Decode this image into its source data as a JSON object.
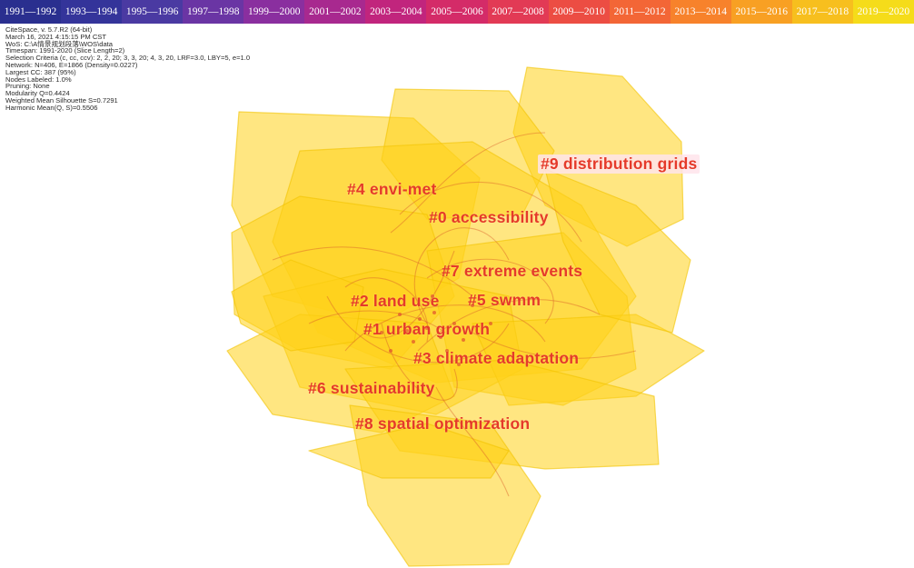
{
  "timeline": {
    "slices": [
      {
        "label": "1991—1992",
        "color": "#2a2f8f"
      },
      {
        "label": "1993—1994",
        "color": "#34349a"
      },
      {
        "label": "1995—1996",
        "color": "#4a3aa2"
      },
      {
        "label": "1997—1998",
        "color": "#6a35a4"
      },
      {
        "label": "1999—2000",
        "color": "#8a2f9f"
      },
      {
        "label": "2001—2002",
        "color": "#a8298f"
      },
      {
        "label": "2003—2004",
        "color": "#c1257d"
      },
      {
        "label": "2005—2006",
        "color": "#d42b68"
      },
      {
        "label": "2007—2008",
        "color": "#e23a55"
      },
      {
        "label": "2009—2010",
        "color": "#ec4d43"
      },
      {
        "label": "2011—2012",
        "color": "#f36636"
      },
      {
        "label": "2013—2014",
        "color": "#f7822b"
      },
      {
        "label": "2015—2016",
        "color": "#f8a023"
      },
      {
        "label": "2017—2018",
        "color": "#f7bf1e"
      },
      {
        "label": "2019—2020",
        "color": "#f5dc1a"
      }
    ]
  },
  "meta_lines": [
    "CiteSpace, v. 5.7.R2 (64-bit)",
    "March 16, 2021 4:15:15 PM CST",
    "WoS: C:\\A情景规划段落\\WOS\\data",
    "Timespan: 1991-2020 (Slice Length=2)",
    "Selection Criteria (c, cc, ccv): 2, 2, 20; 3, 3, 20; 4, 3, 20, LRF=3.0, LBY=5, e=1.0",
    "Network: N=406, E=1866 (Density=0.0227)",
    "Largest CC: 387 (95%)",
    "Nodes Labeled: 1.0%",
    "Pruning: None",
    "Modularity Q=0.4424",
    "Weighted Mean Silhouette S=0.7291",
    "Harmonic Mean(Q, S)=0.5506"
  ],
  "clusters": [
    {
      "label": "#9 distribution grids"
    },
    {
      "label": "#4 envi-met"
    },
    {
      "label": "#0 accessibility"
    },
    {
      "label": "#7 extreme events"
    },
    {
      "label": "#2 land use"
    },
    {
      "label": "#5 swmm"
    },
    {
      "label": "#1 urban growth"
    },
    {
      "label": "#3 climate adaptation"
    },
    {
      "label": "#6 sustainability"
    },
    {
      "label": "#8 spatial optimization"
    }
  ],
  "colors": {
    "cluster_fill": "#ffd21a",
    "cluster_label": "#e53a2a",
    "link": "#d9602a"
  }
}
